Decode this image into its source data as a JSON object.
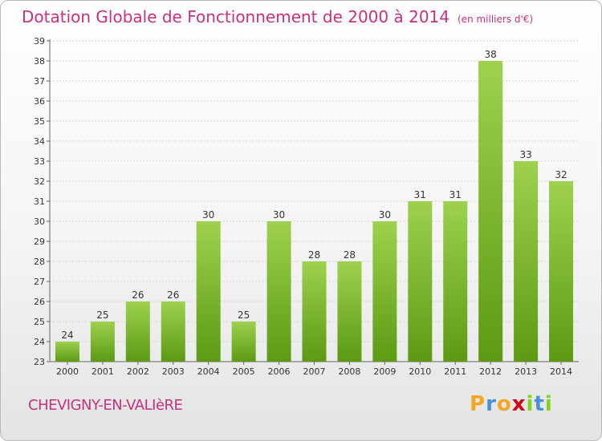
{
  "header": {
    "title": "Dotation Globale de Fonctionnement de 2000 à 2014",
    "unit": "(en milliers d'€)"
  },
  "footer": {
    "commune": "CHEVIGNY-EN-VALIèRE",
    "logo_letters": [
      "P",
      "r",
      "o",
      "x",
      "i",
      "t",
      "i"
    ],
    "logo_colors": [
      "#f5a623",
      "#4a90d9",
      "#f5a623",
      "#d0021b",
      "#7ed321",
      "#4a90d9",
      "#7ed321"
    ]
  },
  "chart_data": {
    "type": "bar",
    "categories": [
      "2000",
      "2001",
      "2002",
      "2003",
      "2004",
      "2005",
      "2006",
      "2007",
      "2008",
      "2009",
      "2010",
      "2011",
      "2012",
      "2013",
      "2014"
    ],
    "values": [
      24,
      25,
      26,
      26,
      30,
      25,
      30,
      28,
      28,
      30,
      31,
      31,
      38,
      33,
      32
    ],
    "ylim": [
      23,
      39
    ],
    "yticks": [
      23,
      24,
      25,
      26,
      27,
      28,
      29,
      30,
      31,
      32,
      33,
      34,
      35,
      36,
      37,
      38,
      39
    ],
    "grid": true,
    "bar_color_top": "#9ed14e",
    "bar_color_bottom": "#5c9a14"
  }
}
